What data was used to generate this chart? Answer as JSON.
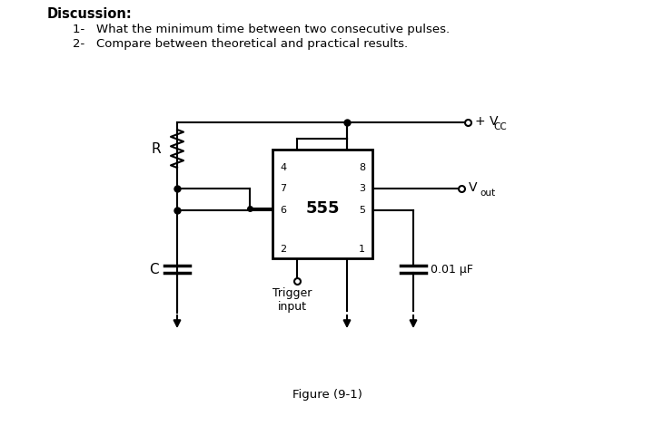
{
  "title": "Discussion:",
  "item1": "1-   What the minimum time between two consecutive pulses.",
  "item2": "2-   Compare between theoretical and practical results.",
  "figure_label": "Figure (9-1)",
  "ic_label": "555",
  "pin4": "4",
  "pin8": "8",
  "pin7": "7",
  "pin3": "3",
  "pin6": "6",
  "pin5": "5",
  "pin2": "2",
  "pin1": "1",
  "vcc_label": "+ V",
  "vcc_sub": "CC",
  "vout_label": "V",
  "vout_sub": "out",
  "r_label": "R",
  "c_label": "C",
  "cap_label": "0.01 μF",
  "trigger_label": "Trigger\ninput",
  "bg_color": "#ffffff",
  "line_color": "#000000",
  "text_color": "#000000",
  "font_size_title": 10.5,
  "font_size_text": 9.5,
  "font_size_pin": 8,
  "font_size_small": 8.5
}
